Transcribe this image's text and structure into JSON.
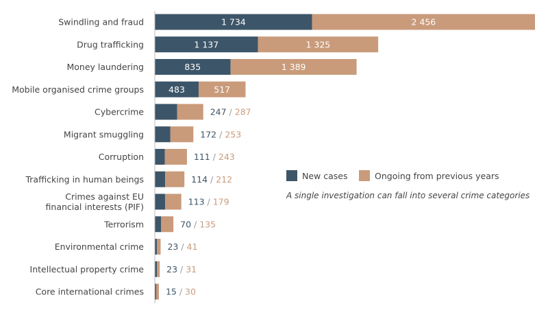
{
  "chart_data": {
    "type": "bar",
    "orientation": "horizontal",
    "stacked": true,
    "categories": [
      "Swindling and fraud",
      "Drug trafficking",
      "Money laundering",
      "Mobile organised crime groups",
      "Cybercrime",
      "Migrant smuggling",
      "Corruption",
      "Trafficking in human beings",
      "Crimes against EU\nfinancial interests (PIF)",
      "Terrorism",
      "Environmental crime",
      "Intellectual property crime",
      "Core international crimes"
    ],
    "series": [
      {
        "name": "New cases",
        "color": "#3d5568",
        "values": [
          1734,
          1137,
          835,
          483,
          247,
          172,
          111,
          114,
          113,
          70,
          23,
          23,
          15
        ]
      },
      {
        "name": "Ongoing from previous years",
        "color": "#c99b7b",
        "values": [
          2456,
          1325,
          1389,
          517,
          287,
          253,
          243,
          212,
          179,
          135,
          41,
          31,
          30
        ]
      }
    ],
    "value_labels": [
      "1 734",
      "2 456",
      "1 137",
      "1 325",
      "835",
      "1 389",
      "483",
      "517"
    ],
    "separator": "/",
    "annotation": "A single investigation can fall into several crime categories",
    "grid": false,
    "legend_placement": "right"
  }
}
